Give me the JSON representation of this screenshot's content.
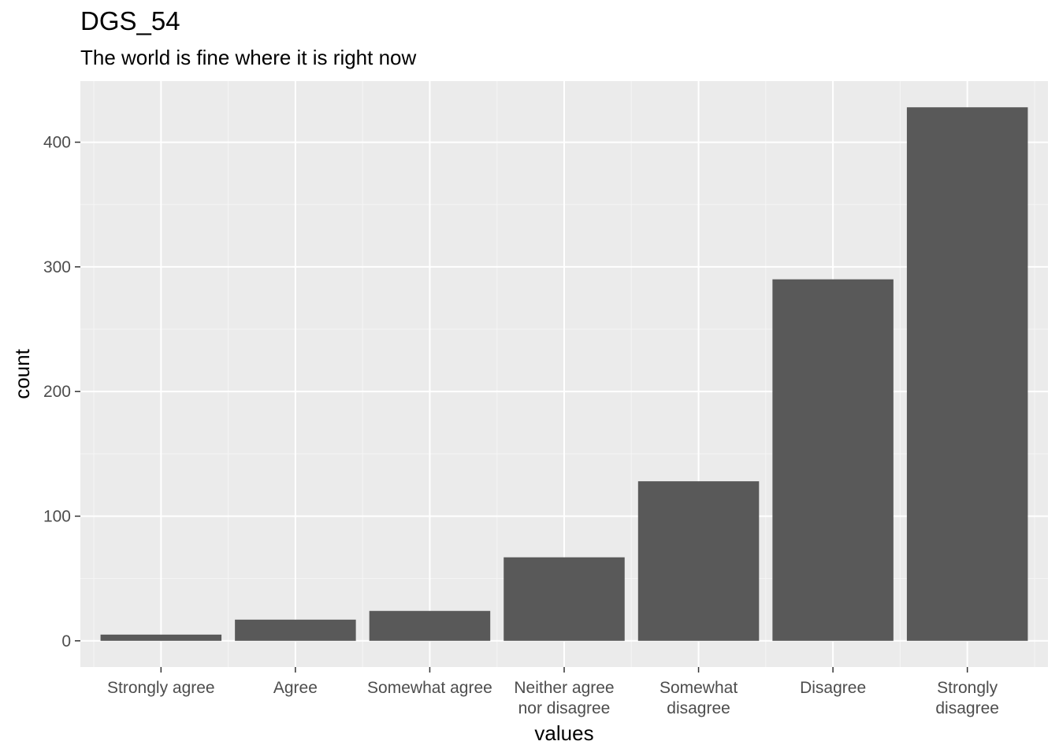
{
  "chart_data": {
    "type": "bar",
    "title": "DGS_54",
    "subtitle": "The world is fine where it is right now",
    "xlabel": "values",
    "ylabel": "count",
    "categories": [
      [
        "Strongly agree"
      ],
      [
        "Agree"
      ],
      [
        "Somewhat agree"
      ],
      [
        "Neither agree",
        "nor disagree"
      ],
      [
        "Somewhat",
        "disagree"
      ],
      [
        "Disagree"
      ],
      [
        "Strongly",
        "disagree"
      ]
    ],
    "values": [
      5,
      17,
      24,
      67,
      128,
      290,
      428
    ],
    "yticks": [
      0,
      100,
      200,
      300,
      400
    ],
    "ylim": [
      -21,
      449
    ],
    "grid": true,
    "colors": {
      "bar": "#595959",
      "panel": "#ebebeb",
      "grid_major": "#ffffff",
      "grid_minor": "#f5f5f5"
    }
  }
}
